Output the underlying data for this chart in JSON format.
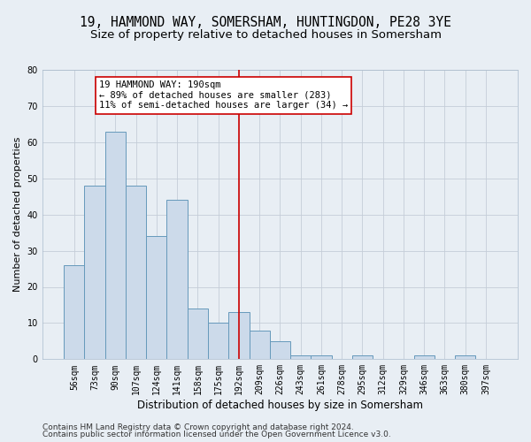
{
  "title_line1": "19, HAMMOND WAY, SOMERSHAM, HUNTINGDON, PE28 3YE",
  "title_line2": "Size of property relative to detached houses in Somersham",
  "xlabel": "Distribution of detached houses by size in Somersham",
  "ylabel": "Number of detached properties",
  "categories": [
    "56sqm",
    "73sqm",
    "90sqm",
    "107sqm",
    "124sqm",
    "141sqm",
    "158sqm",
    "175sqm",
    "192sqm",
    "209sqm",
    "226sqm",
    "243sqm",
    "261sqm",
    "278sqm",
    "295sqm",
    "312sqm",
    "329sqm",
    "346sqm",
    "363sqm",
    "380sqm",
    "397sqm"
  ],
  "values": [
    26,
    48,
    63,
    48,
    34,
    44,
    14,
    10,
    13,
    8,
    5,
    1,
    1,
    0,
    1,
    0,
    0,
    1,
    0,
    1,
    0
  ],
  "bar_color": "#ccdaea",
  "bar_edge_color": "#6699bb",
  "vline_x": 8,
  "vline_color": "#cc0000",
  "annotation_text": "19 HAMMOND WAY: 190sqm\n← 89% of detached houses are smaller (283)\n11% of semi-detached houses are larger (34) →",
  "annotation_box_color": "#ffffff",
  "annotation_box_edge": "#cc0000",
  "ylim": [
    0,
    80
  ],
  "yticks": [
    0,
    10,
    20,
    30,
    40,
    50,
    60,
    70,
    80
  ],
  "grid_color": "#c5cdd8",
  "fig_background": "#e8eef4",
  "ax_background": "#e8eef4",
  "footer_line1": "Contains HM Land Registry data © Crown copyright and database right 2024.",
  "footer_line2": "Contains public sector information licensed under the Open Government Licence v3.0.",
  "title_fontsize": 10.5,
  "subtitle_fontsize": 9.5,
  "xlabel_fontsize": 8.5,
  "ylabel_fontsize": 8,
  "tick_fontsize": 7,
  "footer_fontsize": 6.5,
  "ann_fontsize": 7.5
}
